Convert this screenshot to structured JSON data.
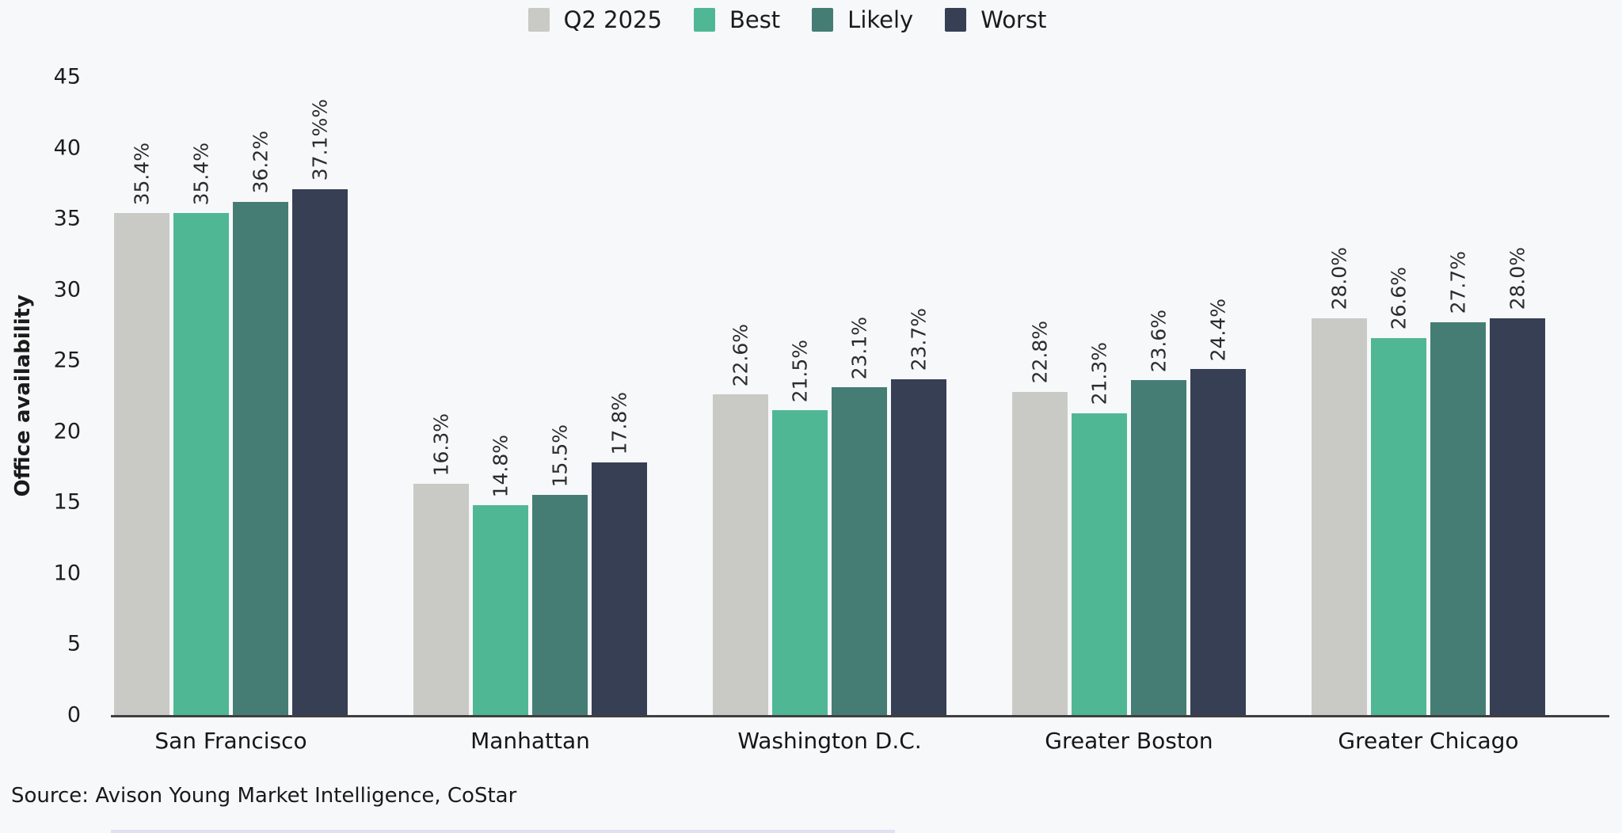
{
  "page": {
    "background": "#f7f8fa"
  },
  "chart_data": {
    "type": "bar",
    "title": "",
    "xlabel": "",
    "ylabel": "Office availability",
    "ylim": [
      0,
      45
    ],
    "yticks": [
      0,
      5,
      10,
      15,
      20,
      25,
      30,
      35,
      40,
      45
    ],
    "grid": false,
    "legend_position": "top-center",
    "categories": [
      "San Francisco",
      "Manhattan",
      "Washington D.C.",
      "Greater Boston",
      "Greater Chicago"
    ],
    "series": [
      {
        "name": "Q2 2025",
        "color": "#c9c9c6",
        "values": [
          35.4,
          16.3,
          22.6,
          22.8,
          28.0
        ],
        "labels": [
          "35.4%",
          "16.3%",
          "22.6%",
          "22.8%",
          "28.0%"
        ]
      },
      {
        "name": "Best",
        "color": "#50b795",
        "values": [
          35.4,
          14.8,
          21.5,
          21.3,
          26.6
        ],
        "labels": [
          "35.4%",
          "14.8%",
          "21.5%",
          "21.3%",
          "26.6%"
        ]
      },
      {
        "name": "Likely",
        "color": "#457d74",
        "values": [
          36.2,
          15.5,
          23.1,
          23.6,
          27.7
        ],
        "labels": [
          "36.2%",
          "15.5%",
          "23.1%",
          "23.6%",
          "27.7%"
        ]
      },
      {
        "name": "Worst",
        "color": "#363f54",
        "values": [
          37.1,
          17.8,
          23.7,
          24.4,
          28.0
        ],
        "labels": [
          "37.1%%",
          "17.8%",
          "23.7%",
          "24.4%",
          "28.0%"
        ]
      }
    ]
  },
  "source": {
    "text": "Source: Avison Young Market Intelligence, CoStar"
  }
}
